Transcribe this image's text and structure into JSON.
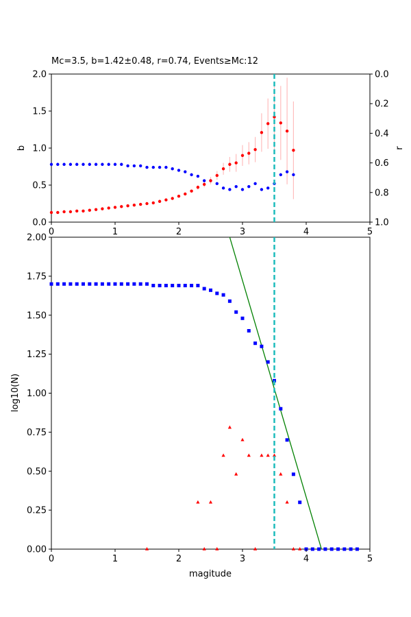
{
  "chart_data": [
    {
      "type": "scatter",
      "title": "Mc=3.5, b=1.42±0.48, r=0.74, Events≥Mc:12",
      "xlabel": "",
      "ylabel": "b",
      "ylabel_right": "r",
      "xlim": [
        0,
        5
      ],
      "ylim": [
        0,
        2
      ],
      "ylim_right": [
        1,
        0
      ],
      "xticks": [
        "0",
        "1",
        "2",
        "3",
        "4",
        "5"
      ],
      "yticks": [
        "0.0",
        "0.5",
        "1.0",
        "1.5",
        "2.0"
      ],
      "yticks_right": [
        "0.0",
        "0.2",
        "0.4",
        "0.6",
        "0.8",
        "1.0"
      ],
      "mc_line": 3.5,
      "colors": {
        "b": "#ff0000",
        "r": "#0000ff",
        "err": "#ffbcbc",
        "mc": "#1cbcbc"
      },
      "b_values": {
        "x": [
          0.0,
          0.1,
          0.2,
          0.3,
          0.4,
          0.5,
          0.6,
          0.7,
          0.8,
          0.9,
          1.0,
          1.1,
          1.2,
          1.3,
          1.4,
          1.5,
          1.6,
          1.7,
          1.8,
          1.9,
          2.0,
          2.1,
          2.2,
          2.3,
          2.4,
          2.5,
          2.6,
          2.7,
          2.8,
          2.9,
          3.0,
          3.1,
          3.2,
          3.3,
          3.4,
          3.5,
          3.6,
          3.7,
          3.8
        ],
        "y": [
          0.13,
          0.13,
          0.14,
          0.14,
          0.15,
          0.15,
          0.16,
          0.17,
          0.18,
          0.19,
          0.2,
          0.21,
          0.22,
          0.23,
          0.24,
          0.25,
          0.26,
          0.28,
          0.3,
          0.32,
          0.35,
          0.38,
          0.42,
          0.47,
          0.51,
          0.56,
          0.63,
          0.72,
          0.78,
          0.8,
          0.9,
          0.93,
          0.98,
          1.21,
          1.33,
          1.42,
          1.34,
          1.23,
          0.97
        ],
        "err": [
          0,
          0,
          0,
          0,
          0,
          0,
          0,
          0,
          0,
          0,
          0,
          0,
          0,
          0,
          0,
          0,
          0,
          0,
          0,
          0,
          0,
          0,
          0.02,
          0.03,
          0.04,
          0.05,
          0.06,
          0.08,
          0.1,
          0.12,
          0.14,
          0.15,
          0.17,
          0.26,
          0.34,
          0.48,
          0.5,
          0.72,
          0.66
        ]
      },
      "r_values": {
        "x": [
          0.0,
          0.1,
          0.2,
          0.3,
          0.4,
          0.5,
          0.6,
          0.7,
          0.8,
          0.9,
          1.0,
          1.1,
          1.2,
          1.3,
          1.4,
          1.5,
          1.6,
          1.7,
          1.8,
          1.9,
          2.0,
          2.1,
          2.2,
          2.3,
          2.4,
          2.5,
          2.6,
          2.7,
          2.8,
          2.9,
          3.0,
          3.1,
          3.2,
          3.3,
          3.4,
          3.5,
          3.6,
          3.7,
          3.8
        ],
        "y": [
          0.61,
          0.61,
          0.61,
          0.61,
          0.61,
          0.61,
          0.61,
          0.61,
          0.61,
          0.61,
          0.61,
          0.61,
          0.62,
          0.62,
          0.62,
          0.63,
          0.63,
          0.63,
          0.63,
          0.64,
          0.65,
          0.66,
          0.68,
          0.69,
          0.72,
          0.72,
          0.74,
          0.77,
          0.78,
          0.76,
          0.78,
          0.76,
          0.74,
          0.78,
          0.77,
          0.74,
          0.68,
          0.66,
          0.68
        ]
      }
    },
    {
      "type": "scatter",
      "title": "",
      "xlabel": "magitude",
      "ylabel": "log10(N)",
      "xlim": [
        0,
        5
      ],
      "ylim": [
        0,
        2
      ],
      "xticks": [
        "0",
        "1",
        "2",
        "3",
        "4",
        "5"
      ],
      "yticks": [
        "0.00",
        "0.25",
        "0.50",
        "0.75",
        "1.00",
        "1.25",
        "1.50",
        "1.75",
        "2.00"
      ],
      "mc_line": 3.5,
      "colors": {
        "cumulative": "#0000ff",
        "noncumulative": "#ff0000",
        "fit": "#008000",
        "mc": "#1cbcbc"
      },
      "fit_line": {
        "x": [
          2.8,
          4.24
        ],
        "y": [
          2.0,
          0.0
        ]
      },
      "cumulative": {
        "x": [
          0.0,
          0.1,
          0.2,
          0.3,
          0.4,
          0.5,
          0.6,
          0.7,
          0.8,
          0.9,
          1.0,
          1.1,
          1.2,
          1.3,
          1.4,
          1.5,
          1.6,
          1.7,
          1.8,
          1.9,
          2.0,
          2.1,
          2.2,
          2.3,
          2.4,
          2.5,
          2.6,
          2.7,
          2.8,
          2.9,
          3.0,
          3.1,
          3.2,
          3.3,
          3.4,
          3.5,
          3.6,
          3.7,
          3.8,
          3.9,
          4.0,
          4.1,
          4.2,
          4.3,
          4.4,
          4.5,
          4.6,
          4.7,
          4.8
        ],
        "y": [
          1.7,
          1.7,
          1.7,
          1.7,
          1.7,
          1.7,
          1.7,
          1.7,
          1.7,
          1.7,
          1.7,
          1.7,
          1.7,
          1.7,
          1.7,
          1.7,
          1.69,
          1.69,
          1.69,
          1.69,
          1.69,
          1.69,
          1.69,
          1.69,
          1.67,
          1.66,
          1.64,
          1.63,
          1.59,
          1.52,
          1.48,
          1.4,
          1.32,
          1.3,
          1.2,
          1.08,
          0.9,
          0.7,
          0.48,
          0.3,
          0,
          0,
          0,
          0,
          0,
          0,
          0,
          0,
          0
        ]
      },
      "noncumulative": {
        "x": [
          1.5,
          2.3,
          2.4,
          2.5,
          2.6,
          2.7,
          2.8,
          2.9,
          3.0,
          3.1,
          3.2,
          3.3,
          3.4,
          3.5,
          3.6,
          3.7,
          3.8,
          3.9
        ],
        "y": [
          0,
          0.3,
          0,
          0.3,
          0,
          0.6,
          0.78,
          0.48,
          0.7,
          0.6,
          0,
          0.6,
          0.6,
          0.6,
          0.48,
          0.3,
          0,
          0
        ]
      }
    }
  ]
}
